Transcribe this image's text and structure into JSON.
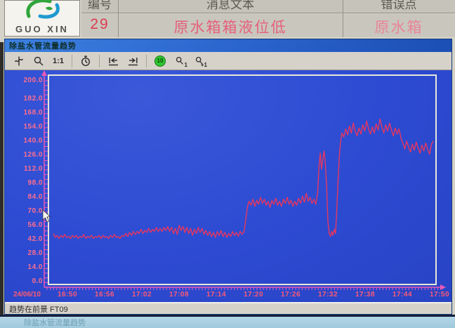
{
  "logo": {
    "text": "GUO XIN"
  },
  "alarm_banner": {
    "columns": [
      {
        "header": "编号",
        "value": "29"
      },
      {
        "header": "消息文本",
        "value": "原水箱箱液位低"
      },
      {
        "header": "错误点",
        "value": "原水箱"
      }
    ]
  },
  "window": {
    "title": "除盐水管流量趋势"
  },
  "toolbar": {
    "scale_label": "1:1",
    "status_badge": "10",
    "select_sub_1": "1",
    "select_sub_2": "+1",
    "icons": [
      "ruler-icon",
      "zoom-area-icon",
      "one-to-one-label",
      "time-range-icon",
      "jump-to-start-icon",
      "jump-to-end-icon",
      "update-status-icon",
      "select-curve-icon",
      "select-curve-2-icon"
    ]
  },
  "status_bar": {
    "text": "趋势在前景  FT09"
  },
  "taskbar": {
    "text": "除盐水管流量趋势"
  },
  "chart_data": {
    "type": "line",
    "title": "除盐水管流量趋势",
    "x_date_label": "24/06/10",
    "x_ticks": [
      "16:50",
      "16:56",
      "17:02",
      "17:08",
      "17:14",
      "17:20",
      "17:26",
      "17:32",
      "17:38",
      "17:44",
      "17:50"
    ],
    "y_ticks": [
      "200.0",
      "182.0",
      "168.0",
      "154.0",
      "140.0",
      "126.0",
      "112.0",
      "98.0",
      "84.0",
      "70.0",
      "56.0",
      "42.0",
      "28.0",
      "14.0",
      "0.0"
    ],
    "ylim": [
      0,
      200
    ],
    "xlim_minutes": [
      0,
      60
    ],
    "grid": false,
    "axis_color": "#e85ab8",
    "frame_color": "#e8e8da",
    "series": [
      {
        "name": "FT09",
        "color": "#f23558",
        "points": [
          [
            0,
            48
          ],
          [
            0.3,
            44
          ],
          [
            0.6,
            46
          ],
          [
            0.9,
            43
          ],
          [
            1.2,
            46
          ],
          [
            1.5,
            44
          ],
          [
            1.8,
            47
          ],
          [
            2.1,
            44
          ],
          [
            2.4,
            45
          ],
          [
            2.7,
            43
          ],
          [
            3,
            46
          ],
          [
            3.3,
            44
          ],
          [
            3.6,
            46
          ],
          [
            3.9,
            43
          ],
          [
            4.2,
            45
          ],
          [
            4.5,
            44
          ],
          [
            4.8,
            47
          ],
          [
            5.1,
            43
          ],
          [
            5.4,
            45
          ],
          [
            5.7,
            44
          ],
          [
            6,
            46
          ],
          [
            6.3,
            43
          ],
          [
            6.6,
            45
          ],
          [
            6.9,
            44
          ],
          [
            7.2,
            46
          ],
          [
            7.5,
            43
          ],
          [
            7.8,
            46
          ],
          [
            8.1,
            44
          ],
          [
            8.4,
            45
          ],
          [
            8.7,
            43
          ],
          [
            9,
            46
          ],
          [
            9.3,
            44
          ],
          [
            9.6,
            47
          ],
          [
            9.9,
            44
          ],
          [
            10.2,
            45
          ],
          [
            10.5,
            43
          ],
          [
            10.8,
            46
          ],
          [
            11.1,
            45
          ],
          [
            11.4,
            48
          ],
          [
            11.7,
            45
          ],
          [
            12,
            49
          ],
          [
            12.3,
            46
          ],
          [
            12.6,
            50
          ],
          [
            12.9,
            47
          ],
          [
            13.2,
            50
          ],
          [
            13.5,
            48
          ],
          [
            13.8,
            52
          ],
          [
            14.1,
            48
          ],
          [
            14.4,
            51
          ],
          [
            14.7,
            49
          ],
          [
            15,
            53
          ],
          [
            15.3,
            49
          ],
          [
            15.6,
            52
          ],
          [
            15.9,
            50
          ],
          [
            16.2,
            54
          ],
          [
            16.5,
            50
          ],
          [
            16.8,
            53
          ],
          [
            17.1,
            50
          ],
          [
            17.4,
            54
          ],
          [
            17.7,
            51
          ],
          [
            18,
            55
          ],
          [
            18.3,
            50
          ],
          [
            18.6,
            54
          ],
          [
            18.9,
            48
          ],
          [
            19.2,
            53
          ],
          [
            19.5,
            47
          ],
          [
            19.8,
            56
          ],
          [
            20.1,
            51
          ],
          [
            20.4,
            55
          ],
          [
            20.7,
            49
          ],
          [
            21,
            54
          ],
          [
            21.3,
            48
          ],
          [
            21.6,
            53
          ],
          [
            21.9,
            46
          ],
          [
            22.2,
            52
          ],
          [
            22.5,
            48
          ],
          [
            22.8,
            54
          ],
          [
            23.1,
            49
          ],
          [
            23.4,
            53
          ],
          [
            23.7,
            47
          ],
          [
            24,
            51
          ],
          [
            24.3,
            46
          ],
          [
            24.6,
            50
          ],
          [
            24.9,
            45
          ],
          [
            25.2,
            49
          ],
          [
            25.5,
            44
          ],
          [
            25.8,
            50
          ],
          [
            26.1,
            46
          ],
          [
            26.4,
            51
          ],
          [
            26.7,
            45
          ],
          [
            27,
            49
          ],
          [
            27.3,
            44
          ],
          [
            27.6,
            48
          ],
          [
            27.9,
            45
          ],
          [
            28.2,
            50
          ],
          [
            28.5,
            46
          ],
          [
            28.8,
            49
          ],
          [
            29.1,
            45
          ],
          [
            29.4,
            50
          ],
          [
            29.7,
            47
          ],
          [
            30,
            50
          ],
          [
            30.2,
            58
          ],
          [
            30.4,
            68
          ],
          [
            30.6,
            76
          ],
          [
            30.8,
            80
          ],
          [
            31.1,
            76
          ],
          [
            31.4,
            82
          ],
          [
            31.7,
            75
          ],
          [
            32,
            81
          ],
          [
            32.3,
            77
          ],
          [
            32.6,
            84
          ],
          [
            32.9,
            78
          ],
          [
            33.2,
            82
          ],
          [
            33.5,
            76
          ],
          [
            33.8,
            80
          ],
          [
            34.1,
            74
          ],
          [
            34.4,
            81
          ],
          [
            34.7,
            77
          ],
          [
            35,
            83
          ],
          [
            35.3,
            76
          ],
          [
            35.6,
            80
          ],
          [
            35.9,
            75
          ],
          [
            36.2,
            82
          ],
          [
            36.5,
            78
          ],
          [
            36.8,
            84
          ],
          [
            37.1,
            77
          ],
          [
            37.4,
            81
          ],
          [
            37.7,
            75
          ],
          [
            38,
            80
          ],
          [
            38.3,
            76
          ],
          [
            38.6,
            83
          ],
          [
            38.9,
            78
          ],
          [
            39.2,
            85
          ],
          [
            39.5,
            79
          ],
          [
            39.8,
            88
          ],
          [
            40.1,
            80
          ],
          [
            40.4,
            84
          ],
          [
            40.7,
            78
          ],
          [
            41,
            82
          ],
          [
            41.3,
            77
          ],
          [
            41.6,
            90
          ],
          [
            41.8,
            115
          ],
          [
            42,
            128
          ],
          [
            42.2,
            112
          ],
          [
            42.4,
            122
          ],
          [
            42.6,
            130
          ],
          [
            42.8,
            118
          ],
          [
            43,
            95
          ],
          [
            43.2,
            60
          ],
          [
            43.4,
            48
          ],
          [
            43.6,
            45
          ],
          [
            43.8,
            50
          ],
          [
            44,
            46
          ],
          [
            44.2,
            52
          ],
          [
            44.4,
            48
          ],
          [
            44.6,
            70
          ],
          [
            44.8,
            100
          ],
          [
            45,
            125
          ],
          [
            45.2,
            140
          ],
          [
            45.4,
            148
          ],
          [
            45.7,
            144
          ],
          [
            46,
            152
          ],
          [
            46.3,
            146
          ],
          [
            46.6,
            155
          ],
          [
            46.9,
            148
          ],
          [
            47.2,
            158
          ],
          [
            47.5,
            150
          ],
          [
            47.8,
            145
          ],
          [
            48.1,
            153
          ],
          [
            48.4,
            147
          ],
          [
            48.7,
            156
          ],
          [
            49,
            150
          ],
          [
            49.3,
            160
          ],
          [
            49.6,
            152
          ],
          [
            49.9,
            147
          ],
          [
            50.2,
            154
          ],
          [
            50.5,
            148
          ],
          [
            50.8,
            157
          ],
          [
            51.1,
            151
          ],
          [
            51.4,
            162
          ],
          [
            51.7,
            154
          ],
          [
            52,
            148
          ],
          [
            52.3,
            156
          ],
          [
            52.6,
            150
          ],
          [
            52.9,
            158
          ],
          [
            53.2,
            151
          ],
          [
            53.5,
            145
          ],
          [
            53.8,
            153
          ],
          [
            54.1,
            147
          ],
          [
            54.4,
            152
          ],
          [
            54.7,
            143
          ],
          [
            55,
            138
          ],
          [
            55.3,
            132
          ],
          [
            55.6,
            140
          ],
          [
            55.9,
            134
          ],
          [
            56.2,
            129
          ],
          [
            56.5,
            137
          ],
          [
            56.8,
            131
          ],
          [
            57.1,
            139
          ],
          [
            57.4,
            133
          ],
          [
            57.7,
            128
          ],
          [
            58,
            136
          ],
          [
            58.3,
            130
          ],
          [
            58.6,
            138
          ],
          [
            58.9,
            132
          ],
          [
            59.2,
            127
          ],
          [
            59.5,
            137
          ],
          [
            59.8,
            140
          ]
        ]
      }
    ]
  }
}
